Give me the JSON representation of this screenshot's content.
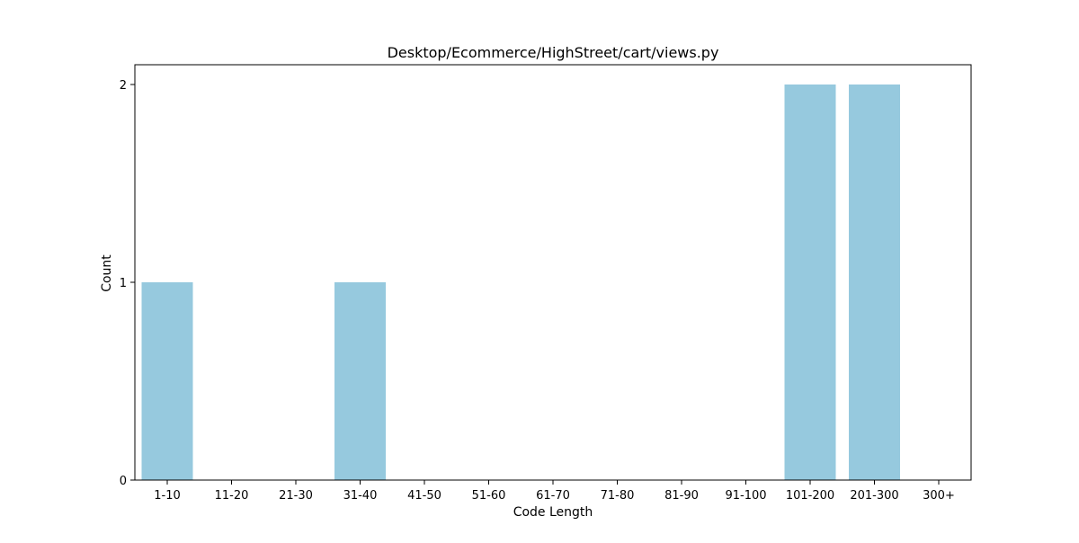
{
  "chart_data": {
    "type": "bar",
    "title": "Desktop/Ecommerce/HighStreet/cart/views.py",
    "xlabel": "Code Length",
    "ylabel": "Count",
    "categories": [
      "1-10",
      "11-20",
      "21-30",
      "31-40",
      "41-50",
      "51-60",
      "61-70",
      "71-80",
      "81-90",
      "91-100",
      "101-200",
      "201-300",
      "300+"
    ],
    "values": [
      1,
      0,
      0,
      1,
      0,
      0,
      0,
      0,
      0,
      0,
      2,
      2,
      0
    ],
    "ylim": [
      0,
      2.1
    ],
    "yticks": [
      0,
      1,
      2
    ],
    "grid": false,
    "bar_color": "#96c9de"
  }
}
